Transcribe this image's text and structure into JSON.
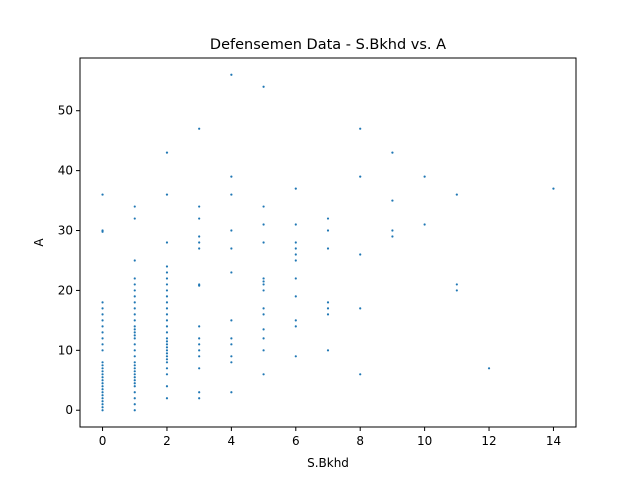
{
  "chart_data": {
    "type": "scatter",
    "title": "Defensemen Data - S.Bkhd vs. A",
    "xlabel": "S.Bkhd",
    "ylabel": "A",
    "xlim": [
      -0.7,
      14.7
    ],
    "ylim": [
      -2.8,
      58.8
    ],
    "xticks": [
      0,
      2,
      4,
      6,
      8,
      10,
      12,
      14
    ],
    "yticks": [
      0,
      10,
      20,
      30,
      40,
      50
    ],
    "grid": false,
    "marker_color": "#1f77b4",
    "series": [
      {
        "x": [
          0,
          0,
          0,
          0,
          0,
          0,
          0,
          0,
          0,
          0,
          0,
          0,
          0,
          0,
          0,
          0,
          0,
          0,
          0,
          0,
          0,
          0,
          0,
          0,
          0,
          0,
          0,
          0,
          0,
          1,
          1,
          1,
          1,
          1,
          1,
          1,
          1,
          1,
          1,
          1,
          1,
          1,
          1,
          1,
          1,
          1,
          1,
          1,
          1,
          1,
          1,
          1,
          1,
          1,
          1,
          1,
          1,
          1,
          1,
          1,
          1,
          2,
          2,
          2,
          2,
          2,
          2,
          2,
          2,
          2,
          2,
          2,
          2,
          2,
          2,
          2,
          2,
          2,
          2,
          2,
          2,
          2,
          2,
          2,
          2,
          2,
          2,
          2,
          2,
          3,
          3,
          3,
          3,
          3,
          3,
          3,
          3,
          3,
          3,
          3,
          3,
          3,
          3,
          3,
          3,
          4,
          4,
          4,
          4,
          4,
          4,
          4,
          4,
          4,
          4,
          4,
          4,
          5,
          5,
          5,
          5,
          5,
          5,
          5,
          5,
          5,
          5,
          5,
          5,
          5,
          5,
          6,
          6,
          6,
          6,
          6,
          6,
          6,
          6,
          6,
          6,
          6,
          7,
          7,
          7,
          7,
          7,
          7,
          7,
          8,
          8,
          8,
          8,
          8,
          9,
          9,
          9,
          9,
          10,
          10,
          11,
          11,
          11,
          12,
          14
        ],
        "y": [
          36,
          30,
          18,
          17,
          16,
          15,
          14,
          13,
          12,
          11,
          10,
          8,
          7,
          6,
          5,
          4,
          3,
          2,
          1,
          0,
          0.5,
          1.5,
          2.5,
          3.5,
          4.5,
          5.5,
          6.5,
          7.5,
          29.8,
          34,
          32,
          25,
          22,
          21,
          20,
          19,
          18,
          17,
          16,
          15,
          14,
          13,
          12,
          11,
          10,
          9,
          8,
          7,
          6,
          5,
          4,
          3,
          2,
          1,
          0,
          13.5,
          12.5,
          7.5,
          6.5,
          5.5,
          4.5,
          43,
          36,
          28,
          24,
          23,
          22,
          21,
          20,
          19,
          18,
          17,
          16,
          15,
          14,
          13,
          12,
          11,
          10,
          9,
          8,
          7,
          6,
          4,
          2,
          11.5,
          10.5,
          9.5,
          8.5,
          47,
          34,
          32,
          29,
          28,
          27,
          21,
          14,
          12,
          11,
          10,
          9,
          7,
          3,
          2,
          20.8,
          56,
          39,
          36,
          30,
          27,
          23,
          15,
          12,
          11,
          9,
          8,
          3,
          54,
          34,
          31,
          28,
          22,
          21,
          20,
          17,
          16,
          12,
          10,
          6,
          13.5,
          21.5,
          37,
          31,
          28,
          27,
          26,
          25,
          19,
          15,
          14,
          9,
          22,
          32,
          30,
          27,
          18,
          17,
          16,
          10,
          47,
          39,
          26,
          17,
          6,
          43,
          35,
          30,
          29,
          39,
          31,
          36,
          21,
          20,
          7,
          37
        ]
      }
    ]
  }
}
